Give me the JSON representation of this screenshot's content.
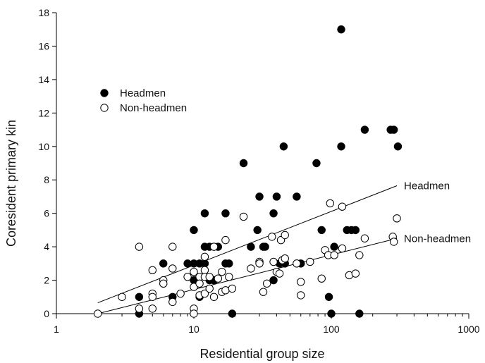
{
  "chart_data": {
    "type": "scatter",
    "xscale": "log",
    "xlim": [
      1,
      1000
    ],
    "ylim": [
      0,
      18
    ],
    "xticks": [
      1,
      10,
      100,
      1000
    ],
    "xtick_labels": [
      "1",
      "10",
      "100",
      "1000"
    ],
    "yticks": [
      0,
      2,
      4,
      6,
      8,
      10,
      12,
      14,
      16,
      18
    ],
    "ytick_labels": [
      "0",
      "2",
      "4",
      "6",
      "8",
      "10",
      "12",
      "14",
      "16",
      "18"
    ],
    "xlabel": "Residential group size",
    "ylabel": "Coresident primary kin",
    "grid": false,
    "legend_position": "top-left",
    "series": [
      {
        "name": "Headmen",
        "marker": "filled-circle",
        "color": "#000000",
        "points": [
          [
            4,
            1
          ],
          [
            4,
            0
          ],
          [
            6,
            3
          ],
          [
            7,
            1
          ],
          [
            9,
            3
          ],
          [
            10,
            5
          ],
          [
            10,
            3
          ],
          [
            10,
            2
          ],
          [
            11,
            3
          ],
          [
            11,
            1
          ],
          [
            12,
            6
          ],
          [
            12,
            4
          ],
          [
            12,
            3
          ],
          [
            13,
            4
          ],
          [
            13,
            2
          ],
          [
            14,
            2
          ],
          [
            15,
            4
          ],
          [
            17,
            6
          ],
          [
            17,
            3
          ],
          [
            18,
            3
          ],
          [
            19,
            0
          ],
          [
            23,
            9
          ],
          [
            26,
            4
          ],
          [
            29,
            5
          ],
          [
            30,
            7
          ],
          [
            32,
            4
          ],
          [
            33,
            4
          ],
          [
            38,
            6
          ],
          [
            38,
            2
          ],
          [
            40,
            7
          ],
          [
            42,
            3
          ],
          [
            45,
            10
          ],
          [
            46,
            3
          ],
          [
            56,
            7
          ],
          [
            60,
            3
          ],
          [
            78,
            9
          ],
          [
            85,
            5
          ],
          [
            96,
            1
          ],
          [
            100,
            0
          ],
          [
            105,
            4
          ],
          [
            118,
            17
          ],
          [
            118,
            10
          ],
          [
            130,
            5
          ],
          [
            140,
            5
          ],
          [
            150,
            5
          ],
          [
            160,
            0
          ],
          [
            175,
            11
          ],
          [
            270,
            11
          ],
          [
            285,
            11
          ],
          [
            305,
            10
          ]
        ]
      },
      {
        "name": "Non-headmen",
        "marker": "open-circle",
        "color": "#000000",
        "points": [
          [
            2,
            0
          ],
          [
            3,
            1
          ],
          [
            4,
            4
          ],
          [
            4,
            0.3
          ],
          [
            5,
            2.6
          ],
          [
            5,
            1.2
          ],
          [
            5,
            1
          ],
          [
            5,
            0.3
          ],
          [
            6,
            2
          ],
          [
            6,
            1.8
          ],
          [
            7,
            4
          ],
          [
            7,
            2.7
          ],
          [
            7,
            0.7
          ],
          [
            8,
            1.2
          ],
          [
            9,
            2.2
          ],
          [
            10,
            2.5
          ],
          [
            10,
            1.6
          ],
          [
            10,
            0.3
          ],
          [
            10,
            0
          ],
          [
            11,
            2.2
          ],
          [
            11,
            1.8
          ],
          [
            11,
            1.1
          ],
          [
            12,
            3.4
          ],
          [
            12,
            2.6
          ],
          [
            12,
            2.2
          ],
          [
            12,
            1.2
          ],
          [
            13,
            2.2
          ],
          [
            13,
            1.5
          ],
          [
            14,
            4
          ],
          [
            14,
            1
          ],
          [
            15,
            2.1
          ],
          [
            16,
            2.5
          ],
          [
            16,
            1.3
          ],
          [
            17,
            4.4
          ],
          [
            17,
            1.4
          ],
          [
            18,
            2.2
          ],
          [
            19,
            1.5
          ],
          [
            23,
            5.8
          ],
          [
            26,
            2.7
          ],
          [
            30,
            3.1
          ],
          [
            30,
            3
          ],
          [
            32,
            1.3
          ],
          [
            34,
            1.8
          ],
          [
            37,
            4.6
          ],
          [
            38,
            3.1
          ],
          [
            40,
            2.5
          ],
          [
            42,
            2.4
          ],
          [
            43,
            4.4
          ],
          [
            44,
            3.2
          ],
          [
            46,
            4.7
          ],
          [
            46,
            3.3
          ],
          [
            56,
            3
          ],
          [
            60,
            1.9
          ],
          [
            60,
            1.1
          ],
          [
            70,
            3.1
          ],
          [
            85,
            2.1
          ],
          [
            90,
            3.8
          ],
          [
            95,
            3.5
          ],
          [
            98,
            6.6
          ],
          [
            105,
            3.5
          ],
          [
            120,
            6.4
          ],
          [
            120,
            3.9
          ],
          [
            135,
            2.3
          ],
          [
            150,
            2.4
          ],
          [
            160,
            3.5
          ],
          [
            175,
            4.5
          ],
          [
            280,
            4.6
          ],
          [
            285,
            4.3
          ],
          [
            300,
            5.7
          ]
        ]
      }
    ],
    "fit_lines": [
      {
        "name": "Headmen",
        "label": "Headmen",
        "x": [
          2,
          300
        ],
        "y": [
          0.65,
          7.65
        ]
      },
      {
        "name": "Non-headmen",
        "label": "Non-headmen",
        "x": [
          2,
          300
        ],
        "y": [
          0,
          4.5
        ]
      }
    ],
    "legend": [
      {
        "label": "Headmen",
        "marker": "filled-circle"
      },
      {
        "label": "Non-headmen",
        "marker": "open-circle"
      }
    ]
  }
}
